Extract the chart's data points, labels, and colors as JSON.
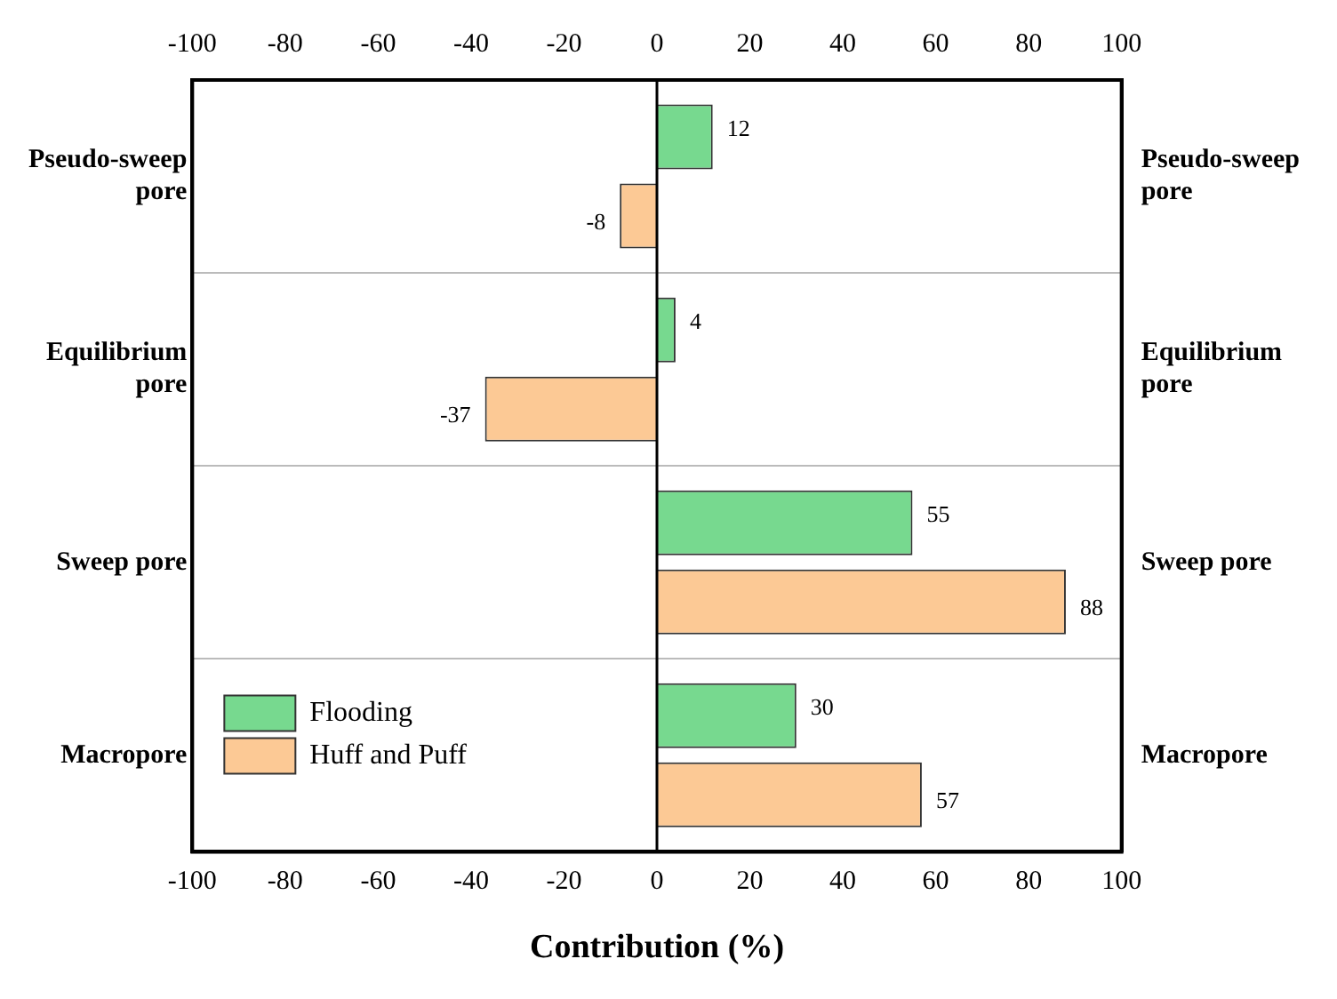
{
  "chart_data": {
    "type": "bar",
    "orientation": "horizontal",
    "xlabel": "Contribution (%)",
    "categories": [
      "Pseudo-sweep pore",
      "Equilibrium pore",
      "Sweep pore",
      "Macropore"
    ],
    "series": [
      {
        "name": "Flooding",
        "color": "#77d98f",
        "values": [
          12,
          4,
          55,
          30
        ]
      },
      {
        "name": "Huff and Puff",
        "color": "#fcc995",
        "values": [
          -8,
          -37,
          88,
          57
        ]
      }
    ],
    "xlim": [
      -100,
      100
    ],
    "xticks": [
      -100,
      -80,
      -60,
      -40,
      -20,
      0,
      20,
      40,
      60,
      80,
      100
    ],
    "x2lim": [
      -100,
      100
    ],
    "x2ticks": [
      -100,
      -80,
      -60,
      -40,
      -20,
      0,
      20,
      40,
      60,
      80,
      100
    ],
    "ref_lines": [
      {
        "axis": "x",
        "value": 0,
        "color": "#000000"
      }
    ],
    "grid": "y",
    "legend": "bottom left",
    "data_labels": true
  }
}
